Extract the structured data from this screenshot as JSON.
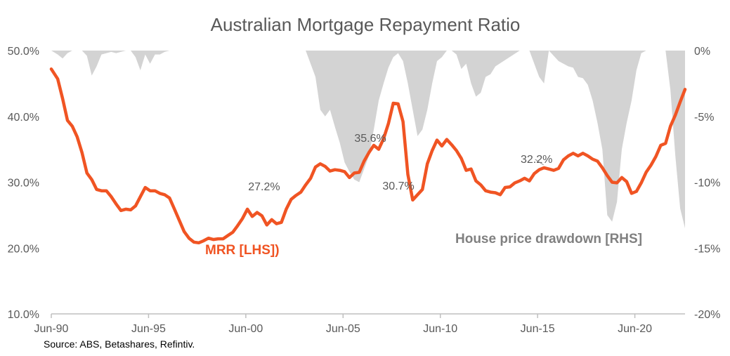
{
  "chart_data": {
    "type": "line",
    "title": "Australian Mortgage Repayment Ratio",
    "source": "Source: ABS, Betashares, Refintiv.",
    "x_ticks": [
      "Jun-90",
      "Jun-95",
      "Jun-00",
      "Jun-05",
      "Jun-10",
      "Jun-15",
      "Jun-20"
    ],
    "left_axis": {
      "ticks": [
        "10.0%",
        "20.0%",
        "30.0%",
        "40.0%",
        "50.0%"
      ],
      "range": [
        10,
        50
      ]
    },
    "right_axis": {
      "ticks": [
        "0%",
        "-5%",
        "-10%",
        "-15%",
        "-20%"
      ],
      "range": [
        -20,
        0
      ]
    },
    "grid": false,
    "series": [
      {
        "name": "MRR [LHS])",
        "axis": "left",
        "type": "line",
        "color": "#F05423",
        "x": [
          1990.42,
          1990.75,
          1991.0,
          1991.25,
          1991.5,
          1991.75,
          1992.0,
          1992.25,
          1992.5,
          1992.75,
          1993.0,
          1993.25,
          1993.5,
          1993.75,
          1994.0,
          1994.25,
          1994.5,
          1994.75,
          1995.0,
          1995.25,
          1995.5,
          1995.75,
          1996.0,
          1996.25,
          1996.5,
          1996.75,
          1997.0,
          1997.25,
          1997.5,
          1997.75,
          1998.0,
          1998.25,
          1998.5,
          1998.75,
          1999.0,
          1999.25,
          1999.5,
          1999.75,
          2000.0,
          2000.25,
          2000.5,
          2000.75,
          2001.0,
          2001.25,
          2001.5,
          2001.75,
          2002.0,
          2002.25,
          2002.5,
          2002.75,
          2003.0,
          2003.25,
          2003.5,
          2003.75,
          2004.0,
          2004.25,
          2004.5,
          2004.75,
          2005.0,
          2005.25,
          2005.5,
          2005.75,
          2006.0,
          2006.25,
          2006.5,
          2006.75,
          2007.0,
          2007.25,
          2007.5,
          2007.75,
          2008.0,
          2008.25,
          2008.5,
          2008.75,
          2009.0,
          2009.25,
          2009.5,
          2009.75,
          2010.0,
          2010.25,
          2010.5,
          2010.75,
          2011.0,
          2011.25,
          2011.5,
          2011.75,
          2012.0,
          2012.25,
          2012.5,
          2012.75,
          2013.0,
          2013.25,
          2013.5,
          2013.75,
          2014.0,
          2014.25,
          2014.5,
          2014.75,
          2015.0,
          2015.25,
          2015.5,
          2015.75,
          2016.0,
          2016.25,
          2016.5,
          2016.75,
          2017.0,
          2017.25,
          2017.5,
          2017.75,
          2018.0,
          2018.25,
          2018.5,
          2018.75,
          2019.0,
          2019.25,
          2019.5,
          2019.75,
          2020.0,
          2020.25,
          2020.5,
          2020.75,
          2021.0,
          2021.25,
          2021.5,
          2021.75,
          2022.0,
          2022.25,
          2022.5,
          2022.75,
          2023.0
        ],
        "y": [
          47.2,
          45.7,
          42.7,
          39.4,
          38.5,
          36.9,
          34.5,
          31.4,
          30.4,
          28.9,
          28.7,
          28.7,
          27.8,
          26.7,
          25.7,
          25.9,
          25.8,
          26.4,
          27.8,
          29.2,
          28.7,
          28.7,
          28.3,
          28.1,
          27.6,
          25.9,
          24.2,
          22.5,
          21.5,
          20.9,
          20.8,
          21.1,
          21.5,
          21.3,
          21.4,
          21.4,
          21.9,
          22.4,
          23.4,
          24.5,
          25.9,
          24.8,
          25.4,
          24.9,
          23.5,
          24.3,
          23.7,
          23.9,
          25.9,
          27.4,
          28.0,
          28.5,
          29.6,
          30.6,
          32.3,
          32.8,
          32.4,
          31.7,
          31.9,
          31.8,
          31.6,
          30.7,
          31.4,
          31.5,
          33.2,
          34.5,
          35.6,
          35.0,
          36.6,
          38.9,
          42.0,
          41.9,
          39.2,
          31.2,
          27.3,
          28.1,
          28.9,
          32.8,
          34.8,
          36.4,
          35.5,
          36.5,
          35.7,
          34.8,
          33.6,
          31.8,
          32.0,
          30.2,
          29.6,
          28.7,
          28.5,
          28.4,
          28.1,
          29.2,
          29.3,
          29.9,
          30.2,
          30.6,
          30.2,
          31.3,
          31.9,
          32.2,
          32.0,
          31.8,
          32.1,
          33.4,
          34.0,
          34.4,
          34.0,
          34.4,
          34.0,
          33.5,
          33.2,
          32.2,
          31.0,
          30.0,
          29.9,
          30.7,
          30.1,
          28.3,
          28.6,
          29.9,
          31.5,
          32.6,
          33.9,
          35.6,
          35.9,
          38.5,
          40.2,
          42.2,
          44.1
        ]
      },
      {
        "name": "House price drawdown [RHS]",
        "axis": "right",
        "type": "area",
        "color": "#D3D3D3",
        "x": [
          1990.42,
          1990.75,
          1991.0,
          1991.25,
          1991.5,
          1991.75,
          1992.0,
          1992.25,
          1992.5,
          1992.75,
          1993.0,
          1993.25,
          1993.5,
          1993.75,
          1994.0,
          1994.25,
          1994.5,
          1994.75,
          1995.0,
          1995.25,
          1995.5,
          1995.75,
          1996.0,
          1996.25,
          1996.5,
          1996.75,
          1997.0,
          2002.0,
          2003.5,
          2004.0,
          2004.25,
          2004.5,
          2004.75,
          2005.0,
          2005.25,
          2005.5,
          2005.75,
          2006.0,
          2006.25,
          2006.5,
          2006.75,
          2007.0,
          2007.25,
          2007.5,
          2007.75,
          2008.0,
          2008.25,
          2008.5,
          2008.75,
          2009.0,
          2009.25,
          2009.5,
          2009.75,
          2010.0,
          2010.25,
          2010.5,
          2010.75,
          2011.0,
          2011.25,
          2011.5,
          2011.75,
          2012.0,
          2012.25,
          2012.5,
          2012.75,
          2013.0,
          2013.25,
          2014.5,
          2015.0,
          2015.25,
          2015.5,
          2015.75,
          2016.0,
          2016.5,
          2017.0,
          2017.25,
          2017.5,
          2017.75,
          2018.0,
          2018.25,
          2018.5,
          2018.75,
          2019.0,
          2019.25,
          2019.5,
          2019.75,
          2020.0,
          2020.25,
          2020.5,
          2020.75,
          2021.0,
          2022.0,
          2022.25,
          2022.5,
          2022.75,
          2023.0
        ],
        "y": [
          0,
          -0.3,
          -0.6,
          -0.2,
          0,
          0,
          0,
          -0.4,
          -1.9,
          -1.2,
          -0.3,
          -0.2,
          -0.1,
          -0.2,
          -0.1,
          0,
          0,
          -0.5,
          -1.5,
          -0.3,
          -1.0,
          -0.3,
          -0.3,
          -0.1,
          0,
          0,
          0,
          0,
          0,
          -2.0,
          -4.5,
          -5.0,
          -4.5,
          -5.8,
          -7.0,
          -8.5,
          -9.2,
          -9.8,
          -10.0,
          -9.0,
          -8.0,
          -6.0,
          -3.8,
          -2.5,
          -1.3,
          -0.5,
          -0.2,
          -0.8,
          -2.5,
          -4.5,
          -6.5,
          -6.0,
          -4.5,
          -2.5,
          -0.8,
          -0.5,
          0,
          0,
          -0.3,
          -1.4,
          -1.0,
          -2.5,
          -3.5,
          -3.2,
          -2.0,
          -1.8,
          -1.2,
          0,
          0,
          -1.0,
          -2.0,
          -2.5,
          0,
          -0.8,
          -1.2,
          -1.3,
          -2.0,
          -2.1,
          -2.6,
          -3.8,
          -5.5,
          -7.5,
          -12.5,
          -13.0,
          -11.5,
          -7.5,
          -5.5,
          -3.8,
          -1.5,
          -0.2,
          0,
          0,
          -3.0,
          -8.0,
          -12.0,
          -13.5
        ]
      }
    ],
    "annotations": [
      {
        "text": "27.2%",
        "x": 2001.0,
        "y": 27.2
      },
      {
        "text": "35.6%",
        "x": 2007.0,
        "y": 35.6
      },
      {
        "text": "30.7%",
        "x": 2008.7,
        "y": 30.7
      },
      {
        "text": "32.2%",
        "x": 2015.8,
        "y": 32.2
      }
    ],
    "series_labels": [
      {
        "text": "MRR [LHS])",
        "series": "MRR [LHS])"
      },
      {
        "text": "House price drawdown [RHS]",
        "series": "House price drawdown [RHS]"
      }
    ]
  }
}
